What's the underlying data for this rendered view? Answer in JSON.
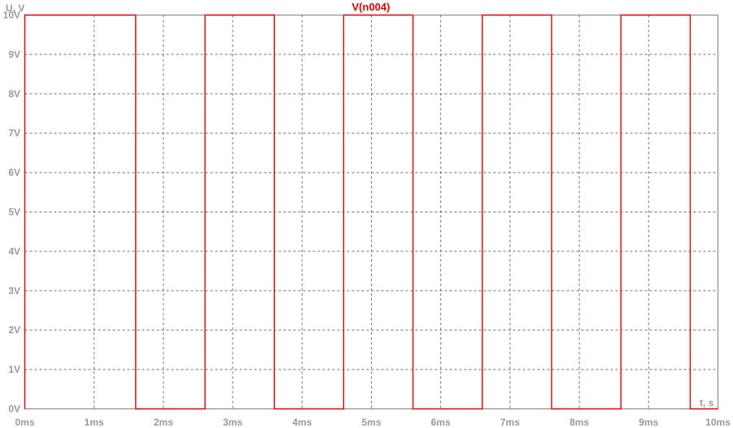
{
  "chart_data": {
    "type": "line",
    "title": "",
    "xlabel": "t, s",
    "ylabel": "U, V",
    "xlim": [
      0,
      10
    ],
    "ylim": [
      0,
      10
    ],
    "x_ticks": [
      "0ms",
      "1ms",
      "2ms",
      "3ms",
      "4ms",
      "5ms",
      "6ms",
      "7ms",
      "8ms",
      "9ms",
      "10ms"
    ],
    "y_ticks": [
      "0V",
      "1V",
      "2V",
      "3V",
      "4V",
      "5V",
      "6V",
      "7V",
      "8V",
      "9V",
      "10V"
    ],
    "grid": true,
    "legend": "top-center",
    "series": [
      {
        "name": "V(n004)",
        "color": "#e00000",
        "x": [
          0,
          0,
          1.6,
          1.6,
          2.6,
          2.6,
          3.6,
          3.6,
          4.6,
          4.6,
          5.6,
          5.6,
          6.6,
          6.6,
          7.6,
          7.6,
          8.6,
          8.6,
          9.6,
          9.6,
          10
        ],
        "y": [
          0,
          10,
          10,
          0,
          0,
          10,
          10,
          0,
          0,
          10,
          10,
          0,
          0,
          10,
          10,
          0,
          0,
          10,
          10,
          0,
          0
        ]
      }
    ]
  }
}
